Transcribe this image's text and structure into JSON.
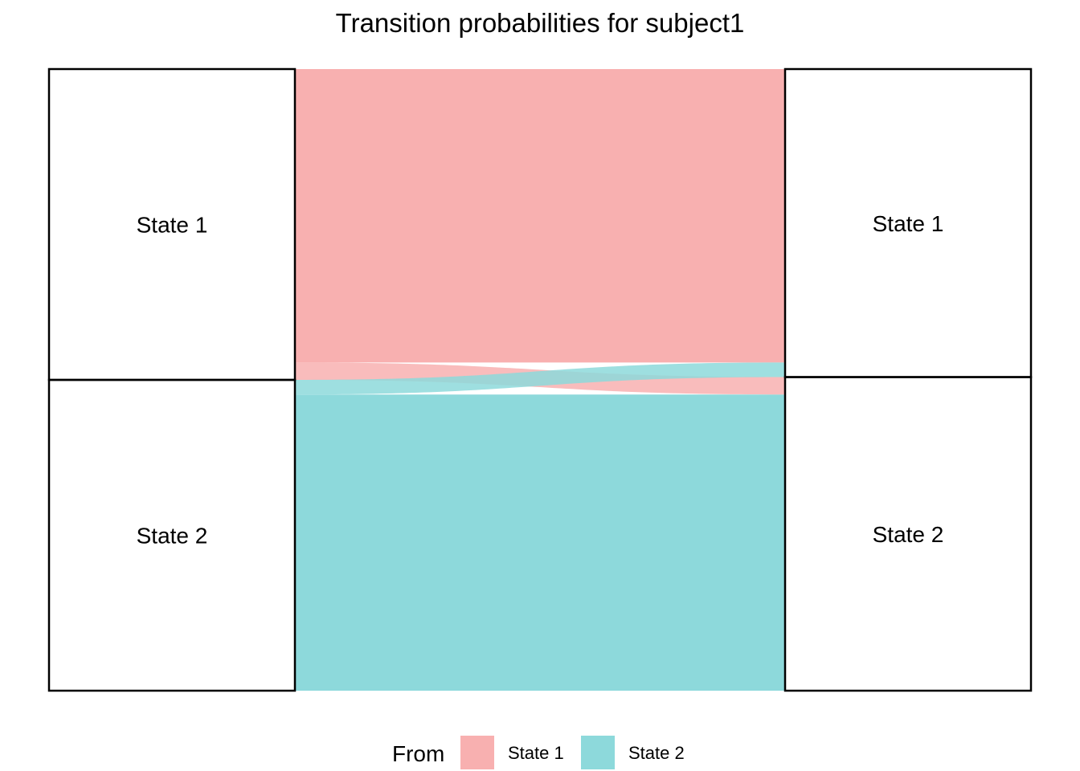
{
  "title": "Transition probabilities for subject1",
  "chart_data": {
    "type": "alluvial",
    "title": "Transition probabilities for subject1",
    "nodes_left": [
      "State 1",
      "State 2"
    ],
    "nodes_right": [
      "State 1",
      "State 2"
    ],
    "flows": [
      {
        "from": "State 1",
        "to": "State 1",
        "value": 0.944
      },
      {
        "from": "State 1",
        "to": "State 2",
        "value": 0.056
      },
      {
        "from": "State 2",
        "to": "State 1",
        "value": 0.047
      },
      {
        "from": "State 2",
        "to": "State 2",
        "value": 0.953
      }
    ],
    "colors": {
      "State 1": "#F8B0B0",
      "State 2": "#8DD9DB"
    },
    "legend": {
      "title": "From",
      "entries": [
        "State 1",
        "State 2"
      ],
      "position": "bottom"
    }
  }
}
